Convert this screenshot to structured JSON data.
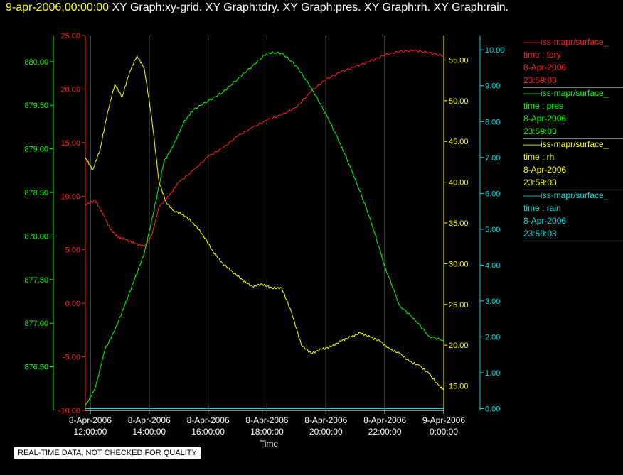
{
  "header": {
    "timestamp": "9-apr-2006,00:00:00",
    "graph_titles": [
      "XY Graph:xy-grid.",
      "XY Graph:tdry.",
      "XY Graph:pres.",
      "XY Graph:rh.",
      "XY Graph:rain."
    ]
  },
  "footer": {
    "quality_note": "REAL-TIME DATA, NOT CHECKED FOR QUALITY"
  },
  "colors": {
    "tdry": "#ff2020",
    "pres": "#00ff00",
    "rh": "#ffff00",
    "rain": "#00dddd",
    "grid": "#c8c8c8"
  },
  "legend": [
    {
      "name": "iss-mapr/surface_",
      "var": "time : tdry",
      "date": "8-Apr-2006",
      "time": "23:59:03",
      "color": "#ff2020"
    },
    {
      "name": "iss-mapr/surface_",
      "var": "time : pres",
      "date": "8-Apr-2006",
      "time": "23:59:03",
      "color": "#00ff00"
    },
    {
      "name": "iss-mapr/surface_",
      "var": "time : rh",
      "date": "8-Apr-2006",
      "time": "23:59:03",
      "color": "#ffff00"
    },
    {
      "name": "iss-mapr/surface_",
      "var": "time : rain",
      "date": "8-Apr-2006",
      "time": "23:59:03",
      "color": "#00dddd"
    }
  ],
  "chart_data": {
    "type": "line",
    "xlabel": "Time",
    "xlim": [
      "2006-04-08 11:50",
      "2006-04-09 00:00"
    ],
    "x_ticks": [
      {
        "date": "8-Apr-2006",
        "time": "12:00:00",
        "value": "2006-04-08 12:00"
      },
      {
        "date": "8-Apr-2006",
        "time": "14:00:00",
        "value": "2006-04-08 14:00"
      },
      {
        "date": "8-Apr-2006",
        "time": "16:00:00",
        "value": "2006-04-08 16:00"
      },
      {
        "date": "8-Apr-2006",
        "time": "18:00:00",
        "value": "2006-04-08 18:00"
      },
      {
        "date": "8-Apr-2006",
        "time": "20:00:00",
        "value": "2006-04-08 20:00"
      },
      {
        "date": "8-Apr-2006",
        "time": "22:00:00",
        "value": "2006-04-08 22:00"
      },
      {
        "date": "9-Apr-2006",
        "time": "0:00:00",
        "value": "2006-04-09 00:00"
      }
    ],
    "grid": "vertical",
    "axes": [
      {
        "id": "pres",
        "side": "left",
        "position": "outer",
        "color": "#00ff00",
        "ylim": [
          876.0,
          880.3
        ],
        "ticks": [
          "876.50",
          "877.00",
          "877.50",
          "878.00",
          "878.50",
          "879.00",
          "879.50",
          "880.00"
        ]
      },
      {
        "id": "tdry",
        "side": "left",
        "position": "inner",
        "color": "#ff2020",
        "ylim": [
          -10.0,
          25.0
        ],
        "ticks": [
          "-10.00",
          "-5.00",
          "0.00",
          "5.00",
          "10.00",
          "15.00",
          "20.00",
          "25.00"
        ]
      },
      {
        "id": "rh",
        "side": "right",
        "position": "inner",
        "color": "#ffff00",
        "ylim": [
          12.0,
          58.0
        ],
        "ticks": [
          "15.00",
          "20.00",
          "25.00",
          "30.00",
          "35.00",
          "40.00",
          "45.00",
          "50.00",
          "55.00"
        ]
      },
      {
        "id": "rain",
        "side": "right",
        "position": "outer",
        "color": "#00dddd",
        "ylim": [
          -0.05,
          10.4
        ],
        "ticks": [
          "0.00",
          "1.00",
          "2.00",
          "3.00",
          "4.00",
          "5.00",
          "6.00",
          "7.00",
          "8.00",
          "9.00",
          "10.00"
        ]
      }
    ],
    "series": [
      {
        "axis": "tdry",
        "color": "#ff2020",
        "x": [
          "2006-04-08 11:50",
          "2006-04-08 12:10",
          "2006-04-08 12:25",
          "2006-04-08 12:40",
          "2006-04-08 12:55",
          "2006-04-08 13:10",
          "2006-04-08 13:30",
          "2006-04-08 13:50",
          "2006-04-08 14:05",
          "2006-04-08 14:20",
          "2006-04-08 14:40",
          "2006-04-08 15:00",
          "2006-04-08 15:30",
          "2006-04-08 16:00",
          "2006-04-08 16:30",
          "2006-04-08 17:00",
          "2006-04-08 17:30",
          "2006-04-08 18:00",
          "2006-04-08 18:30",
          "2006-04-08 19:00",
          "2006-04-08 19:30",
          "2006-04-08 20:00",
          "2006-04-08 20:30",
          "2006-04-08 21:00",
          "2006-04-08 21:30",
          "2006-04-08 22:00",
          "2006-04-08 22:30",
          "2006-04-08 23:00",
          "2006-04-08 23:30",
          "2006-04-09 00:00"
        ],
        "y": [
          9.2,
          9.6,
          8.4,
          7.0,
          6.2,
          6.0,
          5.6,
          5.3,
          6.3,
          9.0,
          10.0,
          11.3,
          12.4,
          13.7,
          14.5,
          15.6,
          16.4,
          17.1,
          17.6,
          18.3,
          19.8,
          20.9,
          21.6,
          22.1,
          22.6,
          23.2,
          23.5,
          23.6,
          23.4,
          23.1
        ]
      },
      {
        "axis": "pres",
        "color": "#00ff00",
        "x": [
          "2006-04-08 11:50",
          "2006-04-08 12:10",
          "2006-04-08 12:30",
          "2006-04-08 12:50",
          "2006-04-08 13:10",
          "2006-04-08 13:30",
          "2006-04-08 13:50",
          "2006-04-08 14:10",
          "2006-04-08 14:30",
          "2006-04-08 14:50",
          "2006-04-08 15:10",
          "2006-04-08 15:30",
          "2006-04-08 16:00",
          "2006-04-08 16:30",
          "2006-04-08 17:00",
          "2006-04-08 17:30",
          "2006-04-08 18:00",
          "2006-04-08 18:30",
          "2006-04-08 19:00",
          "2006-04-08 19:30",
          "2006-04-08 20:00",
          "2006-04-08 20:30",
          "2006-04-08 21:00",
          "2006-04-08 21:30",
          "2006-04-08 22:00",
          "2006-04-08 22:30",
          "2006-04-08 23:00",
          "2006-04-08 23:30",
          "2006-04-09 00:00"
        ],
        "y": [
          876.05,
          876.25,
          876.7,
          876.92,
          877.2,
          877.5,
          877.8,
          878.3,
          878.85,
          879.05,
          879.3,
          879.45,
          879.55,
          879.65,
          879.8,
          879.95,
          880.1,
          880.1,
          879.95,
          879.7,
          879.4,
          879.05,
          878.65,
          878.2,
          877.65,
          877.2,
          877.05,
          876.85,
          876.8
        ]
      },
      {
        "axis": "rh",
        "color": "#ffff00",
        "x": [
          "2006-04-08 11:50",
          "2006-04-08 12:05",
          "2006-04-08 12:20",
          "2006-04-08 12:35",
          "2006-04-08 12:50",
          "2006-04-08 13:05",
          "2006-04-08 13:20",
          "2006-04-08 13:35",
          "2006-04-08 13:50",
          "2006-04-08 14:05",
          "2006-04-08 14:20",
          "2006-04-08 14:35",
          "2006-04-08 14:50",
          "2006-04-08 15:10",
          "2006-04-08 15:30",
          "2006-04-08 15:50",
          "2006-04-08 16:10",
          "2006-04-08 16:30",
          "2006-04-08 16:50",
          "2006-04-08 17:10",
          "2006-04-08 17:30",
          "2006-04-08 17:50",
          "2006-04-08 18:10",
          "2006-04-08 18:30",
          "2006-04-08 18:50",
          "2006-04-08 19:10",
          "2006-04-08 19:30",
          "2006-04-08 19:50",
          "2006-04-08 20:10",
          "2006-04-08 20:30",
          "2006-04-08 20:50",
          "2006-04-08 21:10",
          "2006-04-08 21:30",
          "2006-04-08 21:50",
          "2006-04-08 22:10",
          "2006-04-08 22:30",
          "2006-04-08 22:50",
          "2006-04-08 23:10",
          "2006-04-08 23:30",
          "2006-04-08 23:50",
          "2006-04-09 00:00"
        ],
        "y": [
          43.0,
          41.5,
          44.0,
          48.5,
          52.0,
          50.5,
          53.5,
          55.5,
          54.0,
          48.0,
          40.0,
          37.5,
          36.5,
          36.0,
          35.0,
          33.5,
          31.5,
          30.0,
          29.0,
          28.0,
          27.2,
          27.5,
          27.0,
          27.0,
          24.0,
          20.0,
          19.0,
          19.5,
          19.8,
          20.5,
          21.0,
          21.5,
          21.0,
          20.5,
          19.5,
          19.0,
          18.0,
          17.5,
          16.5,
          15.0,
          14.5
        ]
      },
      {
        "axis": "rain",
        "color": "#00dddd",
        "x": [
          "2006-04-08 11:50",
          "2006-04-09 00:00"
        ],
        "y": [
          0.0,
          0.0
        ]
      }
    ]
  }
}
